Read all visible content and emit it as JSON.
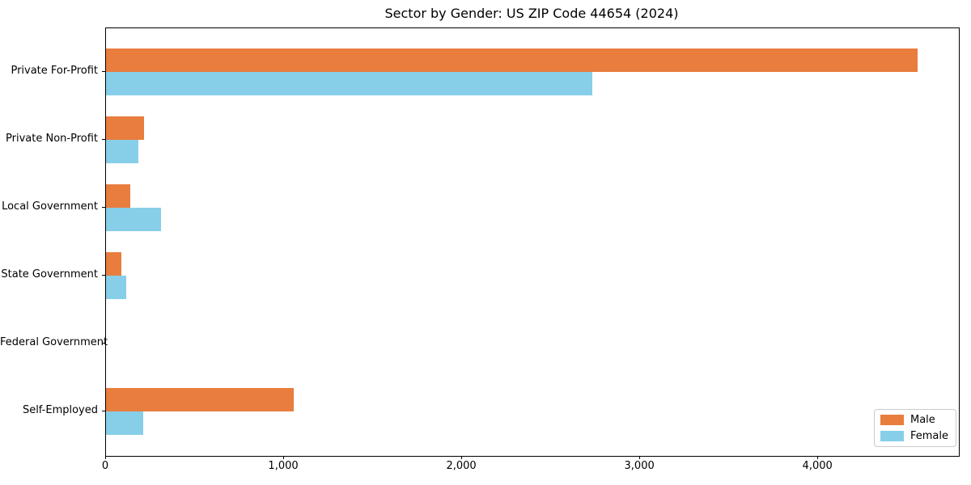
{
  "chart_data": {
    "type": "bar",
    "orientation": "horizontal",
    "title": "Sector by Gender: US ZIP Code 44654 (2024)",
    "categories": [
      "Private For-Profit",
      "Private Non-Profit",
      "Local Government",
      "State Government",
      "Federal Government",
      "Self-Employed"
    ],
    "series": [
      {
        "name": "Male",
        "color": "#e87d3e",
        "values": [
          4560,
          215,
          135,
          85,
          0,
          1055
        ]
      },
      {
        "name": "Female",
        "color": "#87cee8",
        "values": [
          2730,
          180,
          310,
          115,
          0,
          210
        ]
      }
    ],
    "xlabel": "",
    "ylabel": "",
    "xlim": [
      0,
      4790
    ],
    "xticks": [
      0,
      1000,
      2000,
      3000,
      4000
    ],
    "xtick_labels": [
      "0",
      "1,000",
      "2,000",
      "3,000",
      "4,000"
    ],
    "grid": false,
    "legend_position": "lower right",
    "colors": {
      "background": "#ffffff",
      "spine": "#000000",
      "text": "#000000",
      "legend_border": "#cccccc"
    }
  }
}
